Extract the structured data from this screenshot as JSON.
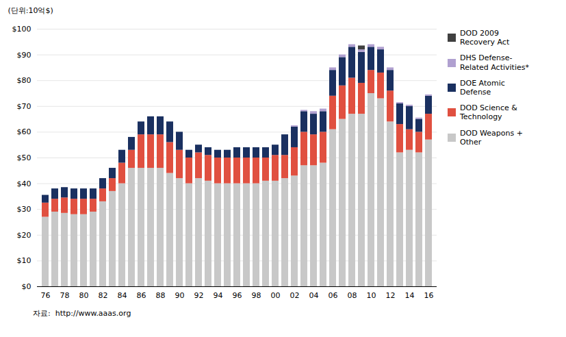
{
  "chart_data": {
    "type": "bar",
    "stacked": true,
    "ylabel": "(단위:10억$)",
    "categories": [
      "76",
      null,
      "78",
      null,
      "80",
      null,
      "82",
      null,
      "84",
      null,
      "86",
      null,
      "88",
      null,
      "90",
      null,
      "92",
      null,
      "94",
      null,
      "96",
      null,
      "98",
      null,
      "00",
      null,
      "02",
      null,
      "04",
      null,
      "06",
      null,
      "08",
      null,
      "10",
      null,
      "12",
      null,
      "14",
      null,
      "16"
    ],
    "series": [
      {
        "name": "DOD Weapons +\nOther",
        "color": "#c8c8c8",
        "values": [
          27,
          29,
          28.5,
          28,
          28,
          29,
          33,
          37,
          40,
          46,
          46,
          46,
          46,
          44,
          42,
          40,
          42,
          41,
          40,
          40,
          40,
          40,
          40,
          41,
          41,
          42,
          43,
          47,
          47,
          48,
          61,
          65,
          67,
          67,
          75,
          73,
          64,
          52,
          53,
          52,
          57
        ]
      },
      {
        "name": "DOD Science &\nTechnology",
        "color": "#e05040",
        "values": [
          5.5,
          5,
          6,
          6,
          6,
          5,
          5,
          5,
          8,
          7,
          13,
          13,
          13,
          12,
          11,
          10,
          10,
          10,
          10,
          10,
          10,
          10,
          10,
          9,
          10,
          9,
          11,
          13,
          12,
          12,
          13,
          13,
          14,
          12,
          9,
          10,
          12,
          11,
          8,
          8,
          10
        ]
      },
      {
        "name": "DOE Atomic\nDefense",
        "color": "#1a3060",
        "values": [
          3,
          4,
          4,
          4,
          4,
          4,
          4,
          4,
          5,
          5,
          5,
          7,
          7,
          8,
          7,
          3,
          3,
          3,
          3,
          3,
          4,
          4,
          4,
          4,
          4,
          8,
          8,
          8,
          8,
          8,
          10,
          11,
          12,
          12,
          9,
          9,
          8,
          8,
          9,
          5,
          7
        ]
      },
      {
        "name": "DHS Defense-\nRelated Activities*",
        "color": "#b0a0d0",
        "values": [
          0,
          0,
          0,
          0,
          0,
          0,
          0,
          0,
          0,
          0,
          0,
          0,
          0,
          0,
          0,
          0,
          0,
          0,
          0,
          0,
          0,
          0,
          0,
          0,
          0,
          0,
          0.5,
          0.5,
          1,
          1,
          1,
          1,
          1,
          1,
          1,
          1,
          1,
          0.5,
          0.5,
          0.5,
          0.5
        ]
      },
      {
        "name": "DOD 2009\nRecovery Act",
        "color": "#404040",
        "values": [
          0,
          0,
          0,
          0,
          0,
          0,
          0,
          0,
          0,
          0,
          0,
          0,
          0,
          0,
          0,
          0,
          0,
          0,
          0,
          0,
          0,
          0,
          0,
          0,
          0,
          0,
          0,
          0,
          0,
          0,
          0,
          0,
          0,
          1.5,
          0,
          0,
          0,
          0,
          0,
          0,
          0
        ]
      }
    ],
    "ylim": [
      0,
      100
    ],
    "yticks": [
      {
        "value": 0,
        "label": "$0"
      },
      {
        "value": 10,
        "label": "$10"
      },
      {
        "value": 20,
        "label": "$20"
      },
      {
        "value": 30,
        "label": "$30"
      },
      {
        "value": 40,
        "label": "$40"
      },
      {
        "value": 50,
        "label": "$50"
      },
      {
        "value": 60,
        "label": "$60"
      },
      {
        "value": 70,
        "label": "$70"
      },
      {
        "value": 80,
        "label": "$80"
      },
      {
        "value": 90,
        "label": "$90"
      },
      {
        "value": 100,
        "label": "$100"
      }
    ],
    "grid": true,
    "legend": "right",
    "annotations": [
      "자료:  http://www.aaas.org"
    ]
  }
}
